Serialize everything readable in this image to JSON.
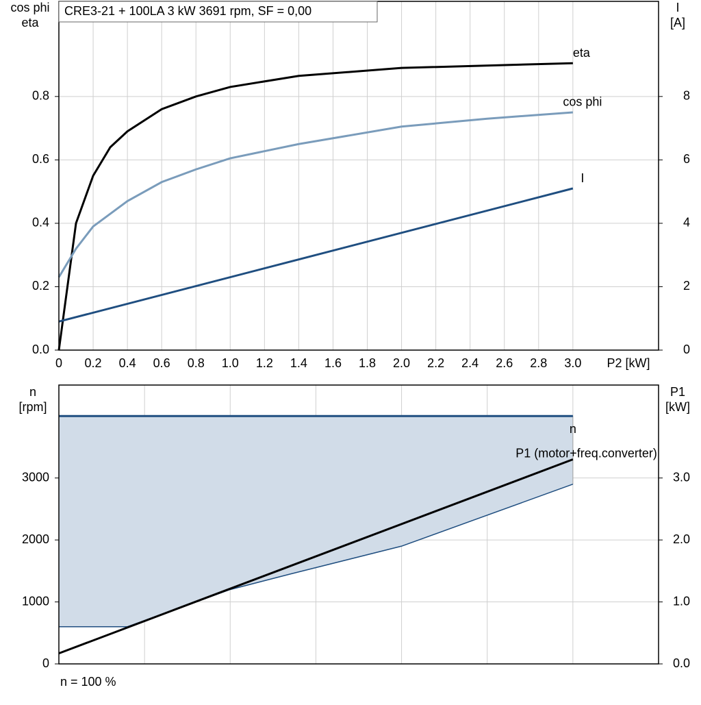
{
  "chart_data": [
    {
      "type": "line",
      "title": "CRE3-21 + 100LA   3 kW   3691 rpm, SF = 0,00",
      "xlabel": "P2 [kW]",
      "ylabel": [
        "cos phi",
        "eta"
      ],
      "y2label": [
        "I",
        "[A]"
      ],
      "xlim": [
        0,
        3.5
      ],
      "xticks": [
        0,
        0.2,
        0.4,
        0.6,
        0.8,
        {
          "value": 1,
          "label": "1.0"
        },
        1.2,
        1.4,
        1.6,
        1.8,
        {
          "value": 2,
          "label": "2.0"
        },
        2.2,
        2.4,
        2.6,
        2.8,
        {
          "value": 3,
          "label": "3.0"
        }
      ],
      "ylim": [
        0,
        1.1
      ],
      "yticks": [
        {
          "value": 0,
          "label": "0.0"
        },
        0.2,
        0.4,
        0.6,
        0.8
      ],
      "y2lim": [
        0,
        11
      ],
      "y2ticks": [
        0,
        2,
        4,
        6,
        8
      ],
      "grid": true,
      "series": [
        {
          "name": "eta",
          "color": "#000000",
          "x": [
            0,
            0.05,
            0.1,
            0.2,
            0.3,
            0.4,
            0.6,
            0.8,
            1.0,
            1.4,
            2.0,
            3.0
          ],
          "values": [
            0,
            0.2,
            0.4,
            0.55,
            0.64,
            0.69,
            0.76,
            0.8,
            0.83,
            0.865,
            0.89,
            0.905
          ]
        },
        {
          "name": "cos phi",
          "color": "#7a9cbb",
          "x": [
            0,
            0.1,
            0.2,
            0.4,
            0.6,
            0.8,
            1.0,
            1.4,
            2.0,
            2.5,
            3.0
          ],
          "values": [
            0.23,
            0.32,
            0.39,
            0.47,
            0.53,
            0.57,
            0.605,
            0.65,
            0.705,
            0.73,
            0.75
          ]
        },
        {
          "name": "I",
          "color": "#1f4e80",
          "axis": "y2",
          "x": [
            0,
            3.0
          ],
          "values": [
            0.9,
            5.1
          ]
        }
      ]
    },
    {
      "type": "line",
      "ylabel": [
        "n",
        "[rpm]"
      ],
      "y2label": [
        "P1",
        "[kW]"
      ],
      "note": "n = 100 %",
      "xlim": [
        0,
        3.5
      ],
      "xgrid": [
        0.5,
        1.0,
        1.5,
        2.0,
        2.5,
        3.0
      ],
      "ylim": [
        0,
        4500
      ],
      "yticks": [
        0,
        1000,
        2000,
        3000
      ],
      "y2lim": [
        0,
        4.5
      ],
      "y2ticks": [
        {
          "value": 0,
          "label": "0.0"
        },
        {
          "value": 1,
          "label": "1.0"
        },
        {
          "value": 2,
          "label": "2.0"
        },
        {
          "value": 3,
          "label": "3.0"
        }
      ],
      "grid": true,
      "area_color": "#d1dce8",
      "series": [
        {
          "name": "n",
          "color": "#1f4e80",
          "x": [
            0,
            3.0
          ],
          "values": [
            4000,
            4000
          ]
        },
        {
          "color": "#1f4e80",
          "x": [
            0,
            0.4,
            1.0,
            1.35,
            2.0,
            3.0
          ],
          "values": [
            600,
            600,
            1200,
            1450,
            1900,
            2900
          ]
        },
        {
          "name": "P1 (motor+freq.converter)",
          "color": "#000000",
          "axis": "y2",
          "x": [
            0,
            3.0
          ],
          "values": [
            0.17,
            3.3
          ]
        }
      ]
    }
  ]
}
